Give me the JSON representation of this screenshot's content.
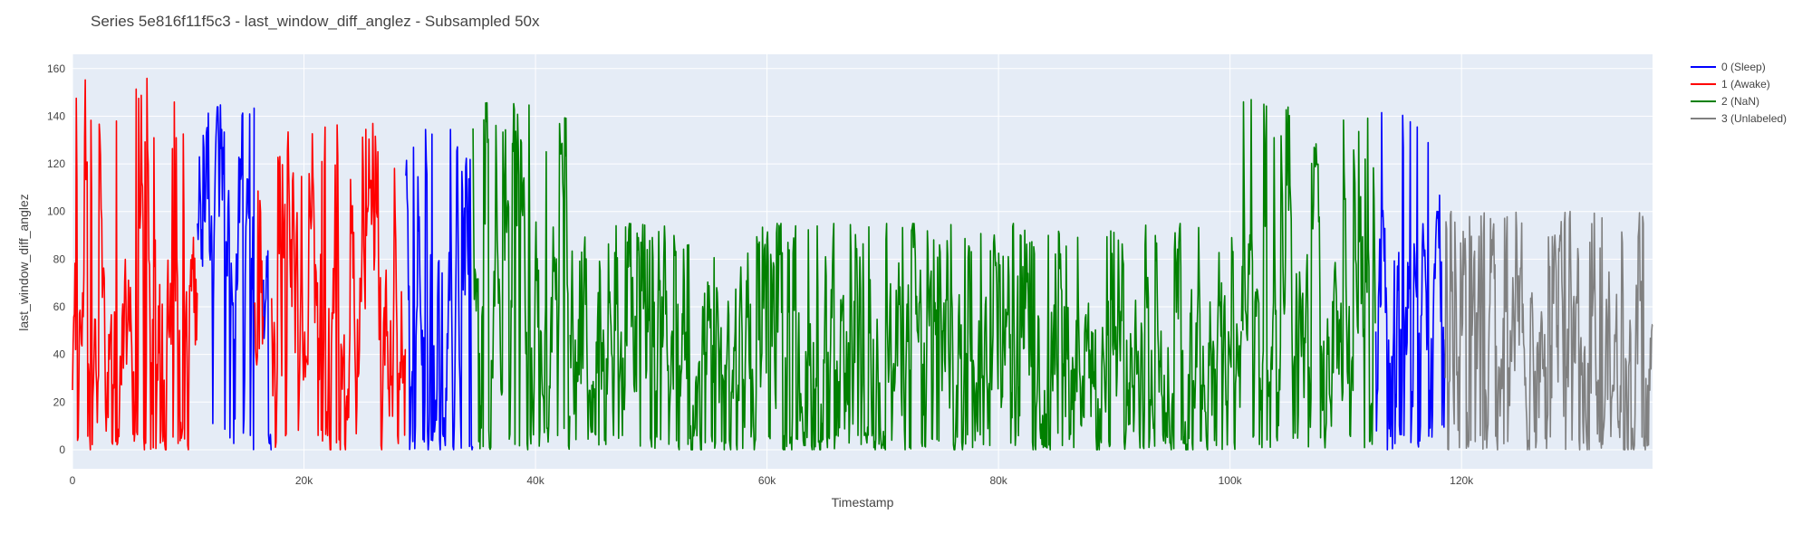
{
  "chart_data": {
    "type": "line",
    "title": "Series 5e816f11f5c3 - last_window_diff_anglez - Subsampled 50x",
    "xlabel": "Timestamp",
    "ylabel": "last_window_diff_anglez",
    "xlim": [
      0,
      136500
    ],
    "ylim": [
      -8,
      166
    ],
    "x_ticks": [
      0,
      20000,
      40000,
      60000,
      80000,
      100000,
      120000
    ],
    "x_tick_labels": [
      "0",
      "20k",
      "40k",
      "60k",
      "80k",
      "100k",
      "120k"
    ],
    "y_ticks": [
      0,
      20,
      40,
      60,
      80,
      100,
      120,
      140,
      160
    ],
    "y_tick_labels": [
      "0",
      "20",
      "40",
      "60",
      "80",
      "100",
      "120",
      "140",
      "160"
    ],
    "grid": true,
    "legend_position": "top-right outside",
    "plot_background": "#e5ecf6",
    "series": [
      {
        "name": "0 (Sleep)",
        "color": "#0000ff",
        "segments": [
          [
            10800,
            15700,
            95,
            145
          ],
          [
            16500,
            17200,
            55,
            118
          ],
          [
            28800,
            34600,
            60,
            135
          ],
          [
            112600,
            118600,
            70,
            147
          ]
        ]
      },
      {
        "name": "1 (Awake)",
        "color": "#ff0000",
        "segments": [
          [
            0,
            10800,
            50,
            158
          ],
          [
            15700,
            16500,
            40,
            110
          ],
          [
            17200,
            28800,
            55,
            137
          ]
        ]
      },
      {
        "name": "2 (NaN)",
        "color": "#008000",
        "segments": [
          [
            34600,
            43000,
            65,
            146
          ],
          [
            43000,
            101000,
            42,
            95
          ],
          [
            101000,
            112600,
            48,
            148
          ]
        ]
      },
      {
        "name": "3 (Unlabeled)",
        "color": "#808080",
        "segments": [
          [
            118600,
            136500,
            40,
            100
          ]
        ]
      }
    ]
  }
}
